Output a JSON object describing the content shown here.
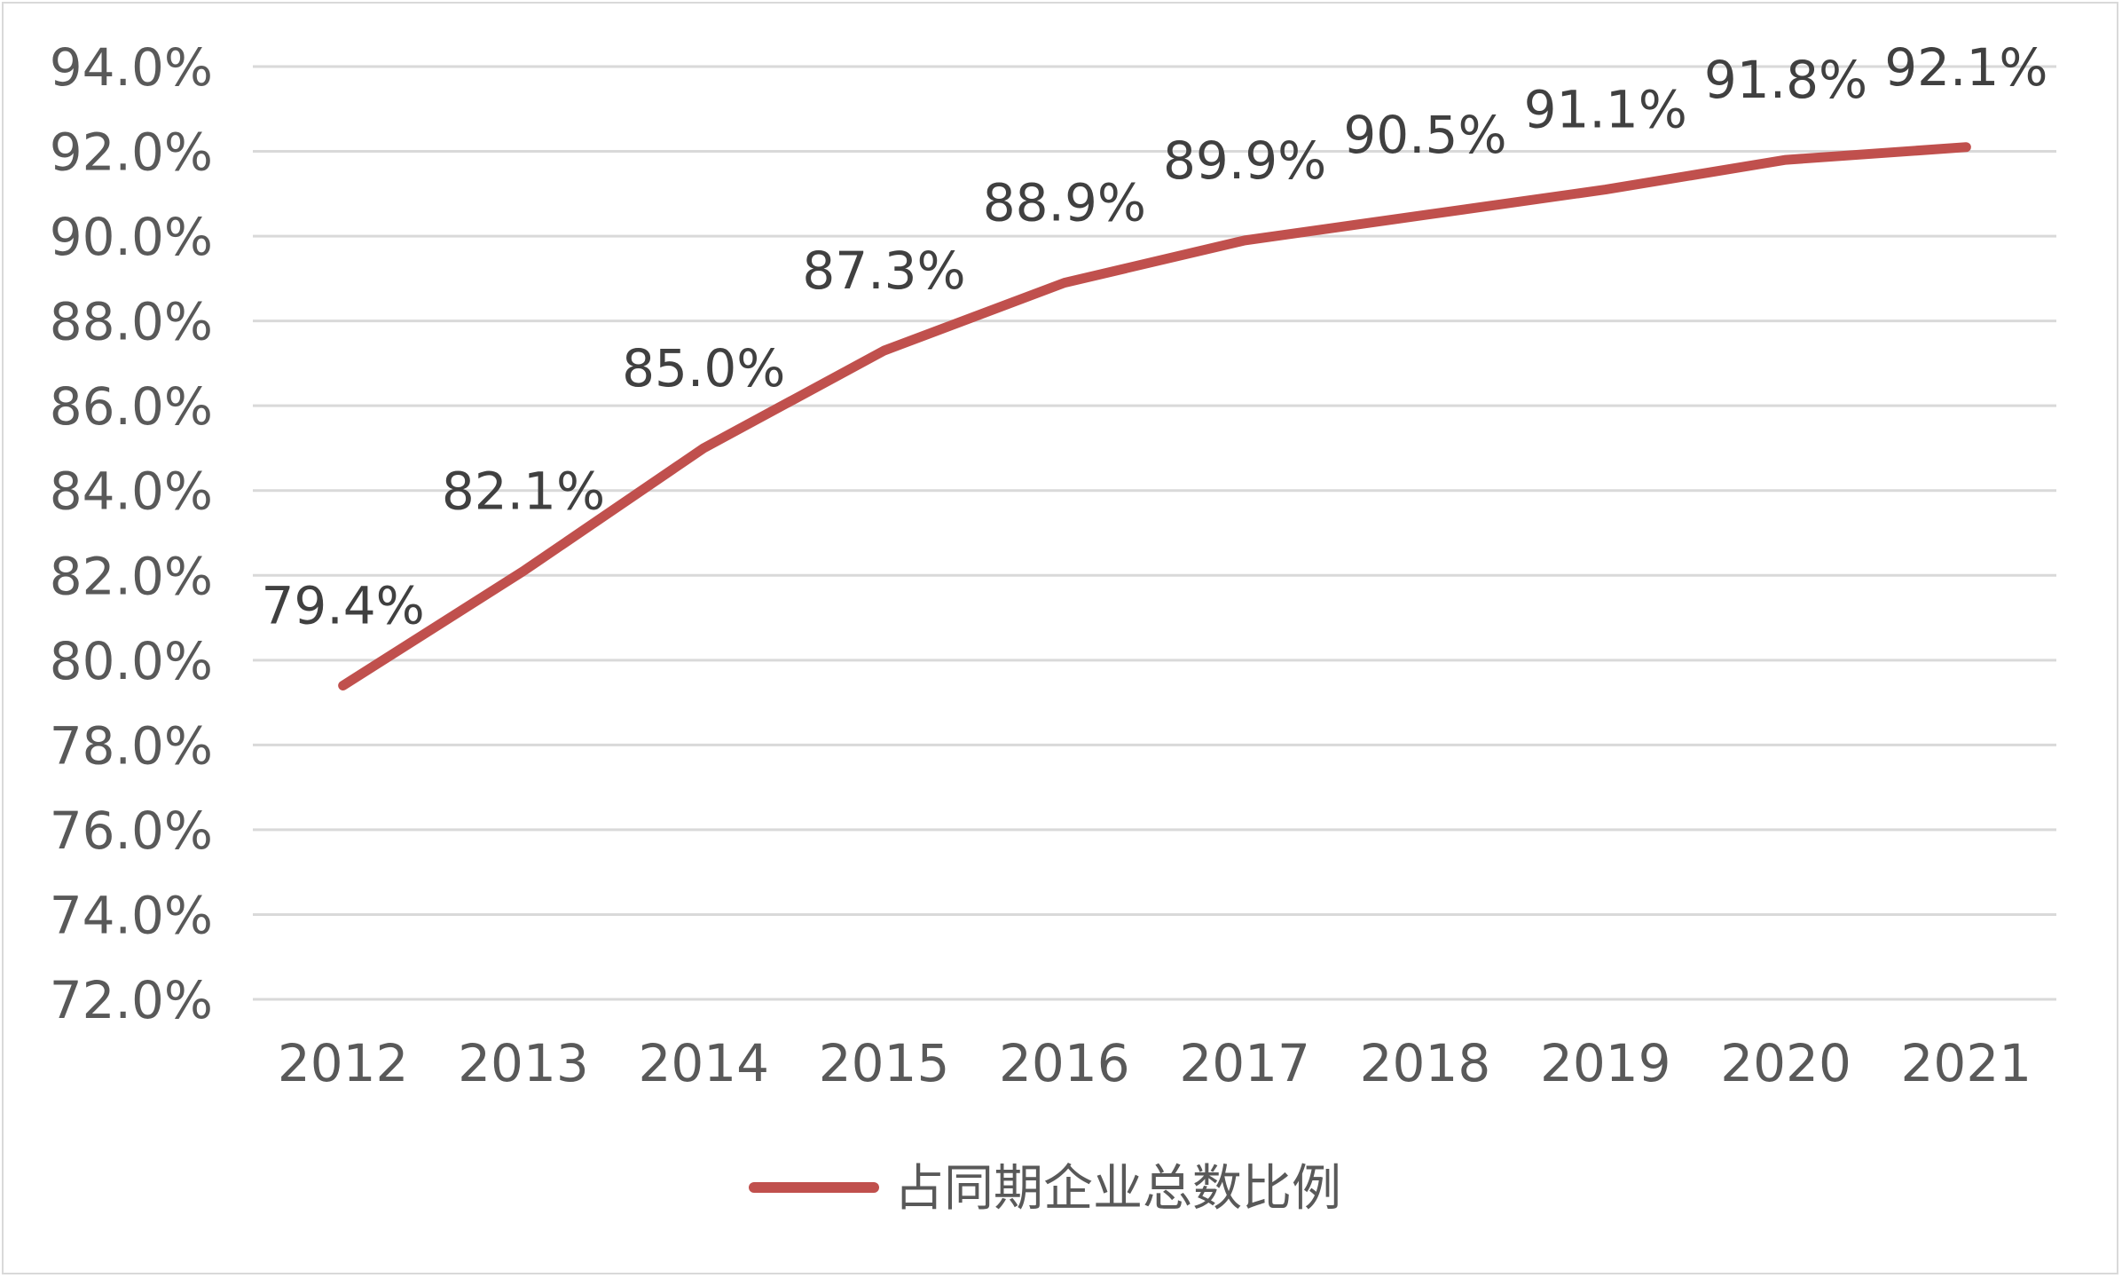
{
  "chart_data": {
    "type": "line",
    "categories": [
      "2012",
      "2013",
      "2014",
      "2015",
      "2016",
      "2017",
      "2018",
      "2019",
      "2020",
      "2021"
    ],
    "series": [
      {
        "name": "占同期企业总数比例",
        "values": [
          79.4,
          82.1,
          85.0,
          87.3,
          88.9,
          89.9,
          90.5,
          91.1,
          91.8,
          92.1
        ],
        "labels": [
          "79.4%",
          "82.1%",
          "85.0%",
          "87.3%",
          "88.9%",
          "89.9%",
          "90.5%",
          "91.1%",
          "91.8%",
          "92.1%"
        ],
        "color": "#c0504d"
      }
    ],
    "title": "",
    "xlabel": "",
    "ylabel": "",
    "ylim": [
      72,
      94
    ],
    "y_ticks": [
      72,
      74,
      76,
      78,
      80,
      82,
      84,
      86,
      88,
      90,
      92,
      94
    ],
    "y_tick_labels": [
      "72.0%",
      "74.0%",
      "76.0%",
      "78.0%",
      "80.0%",
      "82.0%",
      "84.0%",
      "86.0%",
      "88.0%",
      "90.0%",
      "92.0%",
      "94.0%"
    ],
    "grid": true,
    "legend": "bottom",
    "gridline_color": "#d9d9d9"
  }
}
